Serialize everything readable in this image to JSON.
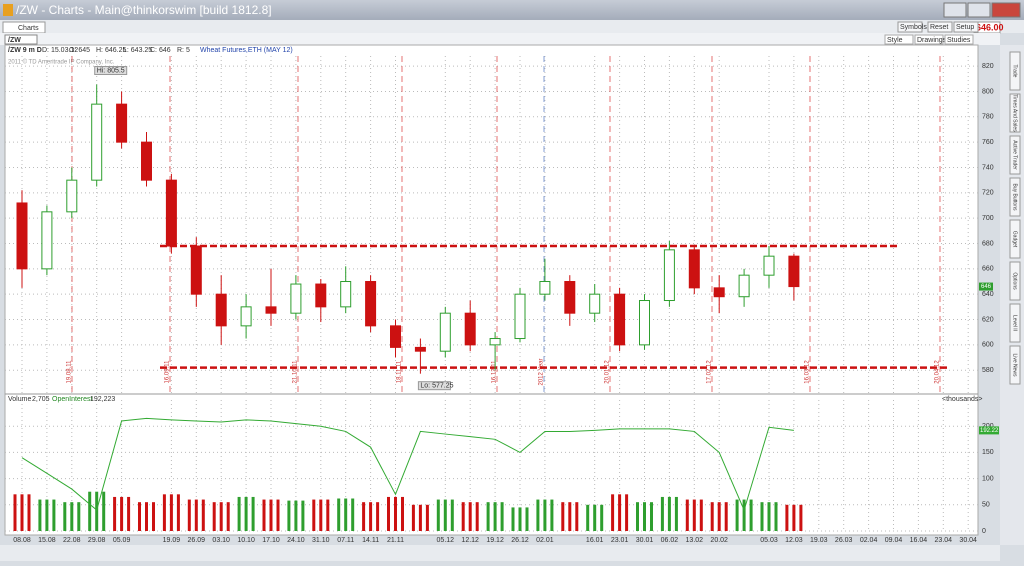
{
  "window": {
    "title": "/ZW - Charts -  Main@thinkorswim [build 1812.8]",
    "tab": "Charts",
    "buttons": [
      "Symbols",
      "Reset",
      "Setup"
    ],
    "price_display": "646.00",
    "symbol": "/ZW",
    "toolbar": [
      "Style",
      "Drawings",
      "Studies"
    ],
    "sidebar": [
      "Trade",
      "Times And Sales",
      "Active Trader",
      "Buy Buttons",
      "Gadget",
      "Options",
      "Level II",
      "Live News"
    ]
  },
  "chart_data": [
    {
      "type": "candlestick",
      "symbol": "/ZW 9 m D",
      "header": [
        "D: 15.03.12",
        "O: 645",
        "H: 646.25",
        "L: 643.25",
        "C: 646",
        "R: 5"
      ],
      "subtitle": "Wheat Futures,ETH (MAY 12)",
      "copyright": "2011 © TD Ameritrade IP Company, Inc.",
      "categories": [
        "08.08",
        "15.08",
        "22.08",
        "29.08",
        "05.09",
        null,
        "19.09",
        "26.09",
        "03.10",
        "10.10",
        "17.10",
        "24.10",
        "31.10",
        "07.11",
        "14.11",
        "21.11",
        null,
        "05.12",
        "12.12",
        "19.12",
        "26.12",
        "02.01",
        null,
        "16.01",
        "23.01",
        "30.01",
        "06.02",
        "13.02",
        "20.02",
        null,
        "05.03",
        "12.03",
        "19.03",
        "26.03",
        "02.04",
        "09.04",
        "16.04",
        "23.04",
        "30.04"
      ],
      "open": [
        712,
        660,
        705,
        730,
        790,
        760,
        730,
        678,
        640,
        615,
        630,
        625,
        648,
        630,
        650,
        615,
        598,
        595,
        625,
        600,
        605,
        640,
        650,
        625,
        640,
        600,
        635,
        675,
        645,
        638,
        655,
        670,
        null,
        null,
        null,
        null,
        null,
        null,
        null
      ],
      "high": [
        722,
        710,
        740,
        805.5,
        800,
        768,
        735,
        685,
        655,
        640,
        660,
        655,
        652,
        662,
        655,
        620,
        605,
        630,
        635,
        610,
        645,
        668,
        655,
        648,
        645,
        640,
        682,
        678,
        655,
        660,
        678,
        672,
        null,
        null,
        null,
        null,
        null,
        null,
        null
      ],
      "low": [
        645,
        655,
        700,
        725,
        755,
        725,
        672,
        630,
        600,
        605,
        615,
        620,
        618,
        625,
        610,
        590,
        577.25,
        590,
        595,
        580,
        602,
        635,
        615,
        618,
        595,
        596,
        630,
        640,
        625,
        630,
        645,
        635,
        null,
        null,
        null,
        null,
        null,
        null,
        null
      ],
      "close": [
        660,
        705,
        730,
        790,
        760,
        730,
        678,
        640,
        615,
        630,
        625,
        648,
        630,
        650,
        615,
        598,
        595,
        625,
        600,
        605,
        640,
        650,
        625,
        640,
        600,
        635,
        675,
        645,
        638,
        655,
        670,
        646,
        null,
        null,
        null,
        null,
        null,
        null,
        null
      ],
      "up_color": "#2e9e2e",
      "down_color": "#cc1111",
      "ylim": [
        562,
        828
      ],
      "yticks": [
        580,
        600,
        620,
        640,
        660,
        680,
        700,
        720,
        740,
        760,
        780,
        800,
        820
      ],
      "grid": true,
      "annotations": [
        {
          "label": "Hi: 805.5",
          "value": 805.5
        },
        {
          "label": "Lo: 577.25",
          "value": 577.25
        }
      ],
      "levels": [
        678,
        582
      ],
      "level_color": "#cc1111",
      "last": {
        "value": 646,
        "label": "646"
      },
      "expiry_lines": [
        "19.08.11",
        "16.09.11",
        "21.10.11",
        "18.11.11",
        "16.12.11",
        "2012 Year",
        "20.01.12",
        "17.02.12",
        "16.03.12",
        "20.04.12"
      ]
    },
    {
      "type": "bar",
      "header": "<thousands>",
      "ylim": [
        0,
        250
      ],
      "yticks": [
        0,
        50,
        100,
        150,
        200
      ],
      "grid": true,
      "series": [
        {
          "name": "Volume",
          "value_label": "2,705",
          "values": [
            70,
            60,
            55,
            75,
            65,
            55,
            70,
            60,
            55,
            65,
            60,
            58,
            60,
            62,
            55,
            65,
            50,
            60,
            55,
            55,
            45,
            60,
            55,
            50,
            70,
            55,
            65,
            60,
            55,
            60,
            55,
            50,
            null,
            null,
            null,
            null,
            null,
            null,
            null
          ]
        },
        {
          "name": "OpenInterest",
          "value_label": "192,223",
          "last_label": "192.22",
          "color": "#33aa33",
          "values": [
            140,
            110,
            80,
            40,
            210,
            215,
            212,
            210,
            208,
            212,
            210,
            205,
            200,
            190,
            160,
            70,
            190,
            185,
            180,
            175,
            150,
            190,
            190,
            192,
            195,
            195,
            195,
            190,
            150,
            40,
            198,
            192,
            null,
            null,
            null,
            null,
            null,
            null,
            null
          ]
        }
      ]
    }
  ]
}
